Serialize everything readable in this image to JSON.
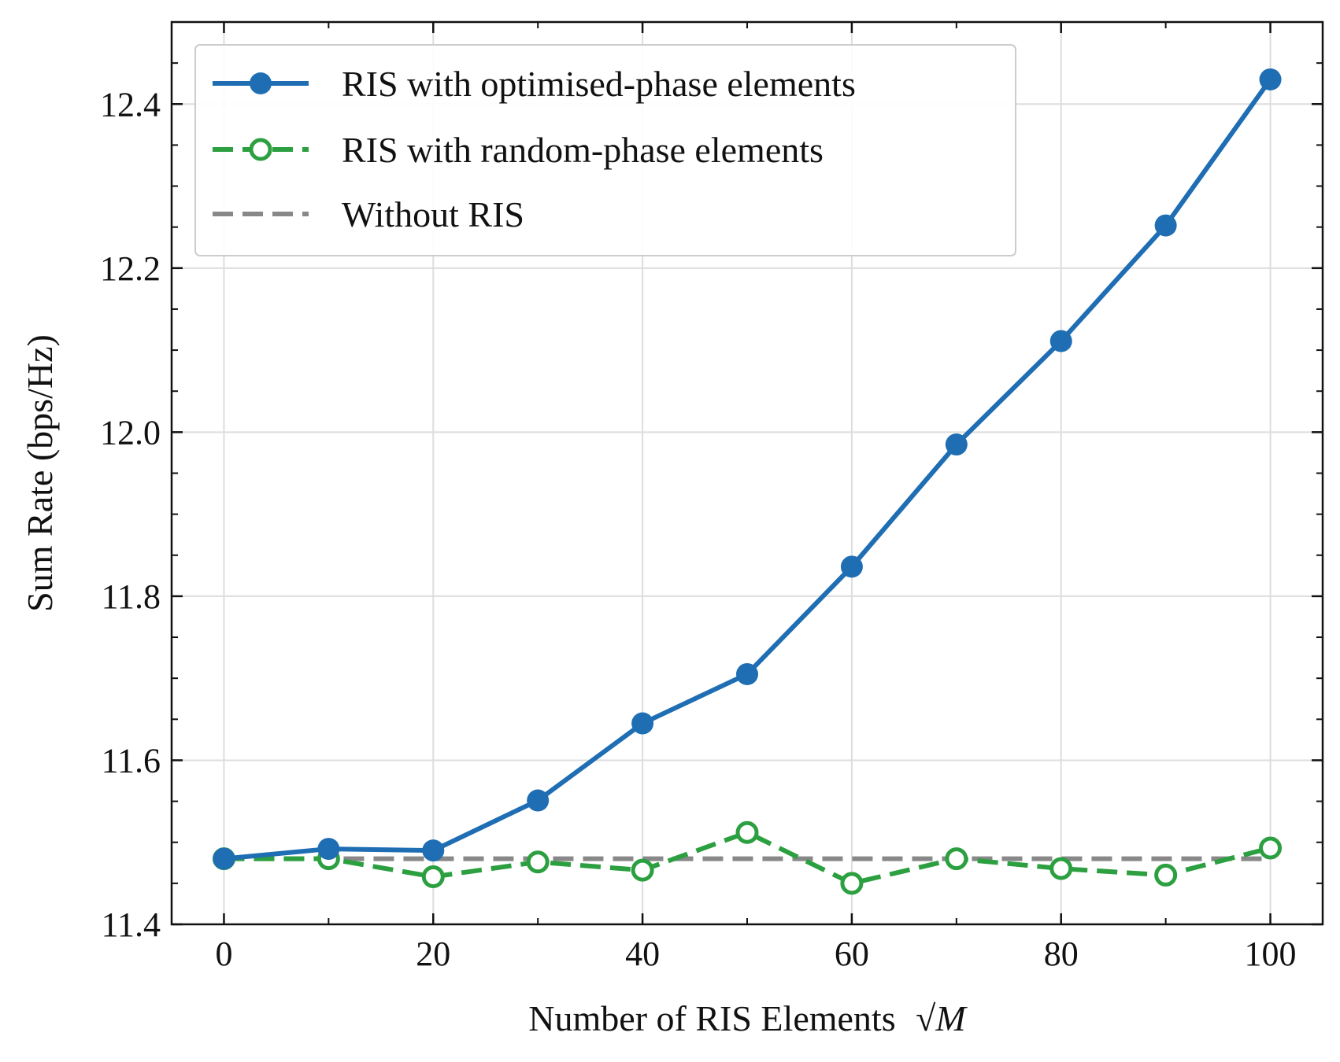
{
  "chart_data": {
    "type": "line",
    "title": "",
    "xlabel": "Number of RIS Elements",
    "xlabel_math": "√M",
    "ylabel": "Sum Rate (bps/Hz)",
    "xlim": [
      -5,
      105
    ],
    "ylim": [
      11.4,
      12.5
    ],
    "x_ticks": [
      0,
      20,
      40,
      60,
      80,
      100
    ],
    "x_tick_labels": [
      "0",
      "20",
      "40",
      "60",
      "80",
      "100"
    ],
    "y_ticks": [
      11.4,
      11.6,
      11.8,
      12.0,
      12.2,
      12.4
    ],
    "y_tick_labels": [
      "11.4",
      "11.6",
      "11.8",
      "12.0",
      "12.2",
      "12.4"
    ],
    "grid": true,
    "legend_position": "top-left",
    "x": [
      0,
      10,
      20,
      30,
      40,
      50,
      60,
      70,
      80,
      90,
      100
    ],
    "series": [
      {
        "name": "RIS with optimised-phase elements",
        "color": "#1f6eb4",
        "style": "solid",
        "marker": "filled-circle",
        "values": [
          11.48,
          11.492,
          11.49,
          11.551,
          11.645,
          11.705,
          11.836,
          11.985,
          12.111,
          12.252,
          12.43
        ]
      },
      {
        "name": "RIS with random-phase elements",
        "color": "#2ca040",
        "style": "dashed",
        "marker": "open-circle",
        "values": [
          11.48,
          11.48,
          11.458,
          11.476,
          11.466,
          11.512,
          11.45,
          11.48,
          11.468,
          11.46,
          11.493
        ]
      },
      {
        "name": "Without RIS",
        "color": "#888888",
        "style": "dashed",
        "marker": "none",
        "values": [
          11.48,
          11.48,
          11.48,
          11.48,
          11.48,
          11.48,
          11.48,
          11.48,
          11.48,
          11.48,
          11.48
        ]
      }
    ]
  }
}
